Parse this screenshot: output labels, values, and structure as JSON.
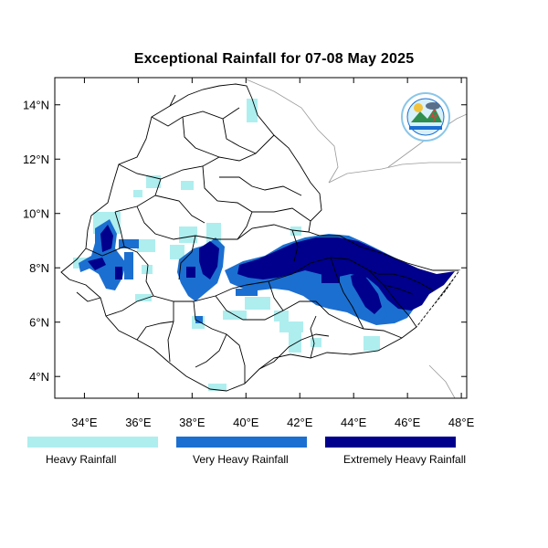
{
  "title": "Exceptional Rainfall for 07-08 May 2025",
  "map": {
    "lon_range": [
      32.9,
      48.2
    ],
    "lat_range": [
      3.2,
      15.0
    ],
    "x_ticks": [
      {
        "value": 34,
        "label": "34°E"
      },
      {
        "value": 36,
        "label": "36°E"
      },
      {
        "value": 38,
        "label": "38°E"
      },
      {
        "value": 40,
        "label": "40°E"
      },
      {
        "value": 42,
        "label": "42°E"
      },
      {
        "value": 44,
        "label": "44°E"
      },
      {
        "value": 46,
        "label": "46°E"
      },
      {
        "value": 48,
        "label": "48°E"
      }
    ],
    "y_ticks": [
      {
        "value": 4,
        "label": "4°N"
      },
      {
        "value": 6,
        "label": "6°N"
      },
      {
        "value": 8,
        "label": "8°N"
      },
      {
        "value": 10,
        "label": "10°N"
      },
      {
        "value": 12,
        "label": "12°N"
      },
      {
        "value": 14,
        "label": "14°N"
      }
    ]
  },
  "legend": [
    {
      "label": "Heavy Rainfall",
      "color": "#aeeeef"
    },
    {
      "label": "Very Heavy Rainfall",
      "color": "#1b6fd0"
    },
    {
      "label": "Extremely Heavy Rainfall",
      "color": "#00008c"
    }
  ],
  "logo": {
    "icon": "meteorology-institute-logo"
  }
}
